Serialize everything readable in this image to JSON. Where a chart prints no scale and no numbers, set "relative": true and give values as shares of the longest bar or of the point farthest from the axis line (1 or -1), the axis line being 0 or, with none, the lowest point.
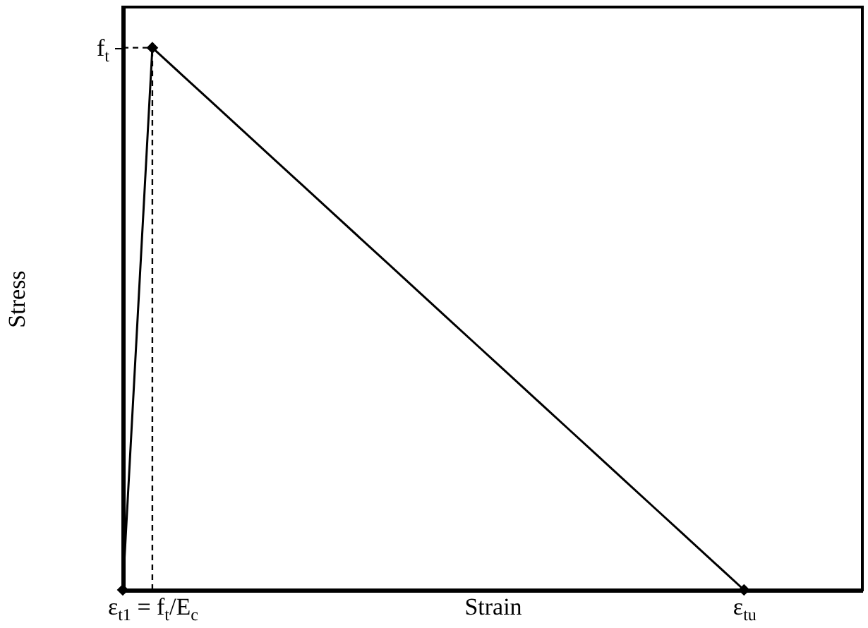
{
  "chart_data": {
    "type": "line",
    "relative": true,
    "xlabel": "Strain",
    "ylabel": "Stress",
    "categories": [
      null,
      "ε$_{t1}$ = f$_{t}$/E$_{c}$",
      null,
      null,
      null,
      null,
      null,
      null,
      null,
      null,
      null,
      null,
      null,
      null,
      null,
      null,
      null,
      null,
      null,
      null,
      null,
      "ε$_{tu}$",
      null,
      null,
      null,
      null
    ],
    "series": [
      {
        "color": "#000000",
        "marker": "none",
        "values": [
          0,
          1,
          0.95,
          0.9,
          0.85,
          0.8,
          0.75,
          0.7,
          0.65,
          0.6,
          0.55,
          0.5,
          0.45,
          0.4,
          0.35,
          0.3,
          0.25,
          0.2,
          0.15,
          0.1,
          0.05,
          0,
          null,
          null,
          null,
          null
        ]
      },
      {
        "type": "scatter",
        "color": "#000000",
        "values": [
          0,
          1,
          null,
          null,
          null,
          null,
          null,
          null,
          null,
          null,
          null,
          null,
          null,
          null,
          null,
          null,
          null,
          null,
          null,
          null,
          null,
          0,
          null,
          null,
          null,
          null
        ]
      }
    ],
    "marker": "diamond",
    "line_style": "solid",
    "grid": false,
    "ref_lines": [
      {
        "axis": "y",
        "value": 1,
        "label": "f$_{t}$",
        "line_style": "dashed",
        "color": "#000000"
      },
      {
        "axis": "x",
        "value": "ε$_{t1}$ = f$_{t}$/E$_{c}$",
        "line_style": "dashed",
        "color": "#000000"
      }
    ]
  }
}
